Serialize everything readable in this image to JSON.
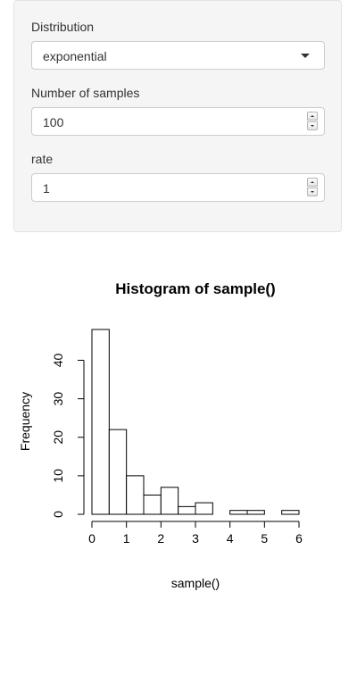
{
  "inputs": {
    "distribution": {
      "label": "Distribution",
      "value": "exponential"
    },
    "num_samples": {
      "label": "Number of samples",
      "value": "100"
    },
    "rate": {
      "label": "rate",
      "value": "1"
    }
  },
  "chart_data": {
    "type": "bar",
    "title": "Histogram of sample()",
    "xlabel": "sample()",
    "ylabel": "Frequency",
    "bin_edges": [
      0,
      0.5,
      1,
      1.5,
      2,
      2.5,
      3,
      3.5,
      4,
      4.5,
      5,
      5.5,
      6
    ],
    "values": [
      48,
      22,
      10,
      5,
      7,
      2,
      3,
      0,
      1,
      1,
      0,
      1
    ],
    "xlim": [
      0,
      6
    ],
    "ylim": [
      0,
      48
    ],
    "x_ticks": [
      0,
      1,
      2,
      3,
      4,
      5,
      6
    ],
    "y_ticks": [
      0,
      10,
      20,
      30,
      40
    ],
    "grid": false
  }
}
